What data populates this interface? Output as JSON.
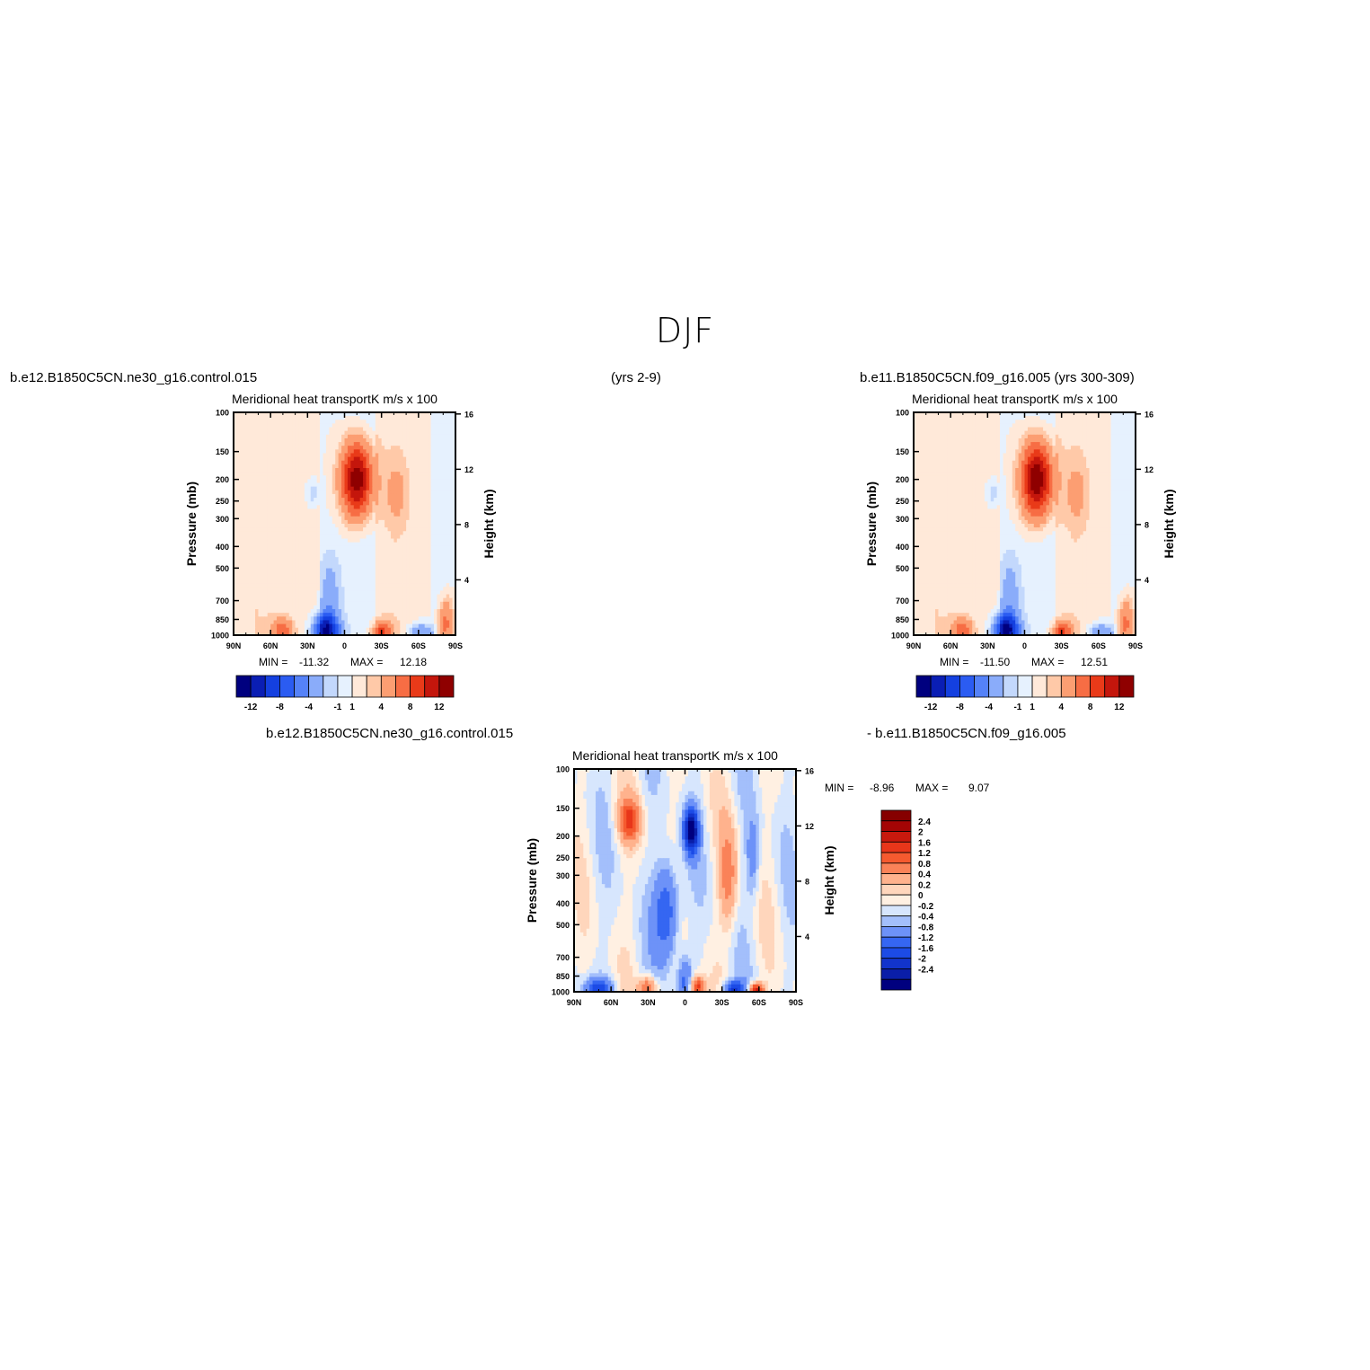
{
  "page_title": "DJF",
  "captions": {
    "left_case": "b.e12.B1850C5CN.ne30_g16.control.015",
    "years_left": "(yrs 2-9)",
    "right_case": "b.e11.B1850C5CN.f09_g16.005 (yrs 300-309)",
    "diff_case_a": "b.e12.B1850C5CN.ne30_g16.control.015",
    "diff_case_b": "- b.e11.B1850C5CN.f09_g16.005"
  },
  "chart_data": [
    {
      "id": "panel-1",
      "type": "heatmap",
      "title_left": "Meridional heat transport",
      "title_right": "K m/s x 100",
      "ylabel": "Pressure (mb)",
      "ylabel_right": "Height (km)",
      "x_ticks": [
        "90N",
        "60N",
        "30N",
        "0",
        "30S",
        "60S",
        "90S"
      ],
      "y_ticks": [
        "100",
        "150",
        "200",
        "250",
        "300",
        "400",
        "500",
        "700",
        "850",
        "1000"
      ],
      "y_right_ticks": [
        "16",
        "12",
        "8",
        "4"
      ],
      "min_label": "MIN =",
      "min_value": "-11.32",
      "max_label": "MAX =",
      "max_value": "12.18",
      "colorbar_ticks": [
        "-12",
        "-8",
        "-4",
        "-1",
        "1",
        "4",
        "8",
        "12"
      ],
      "features": [
        {
          "lat": -10,
          "p": 200,
          "value": 12.2
        },
        {
          "lat": 15,
          "p": 920,
          "value": -11.3
        },
        {
          "lat": -30,
          "p": 960,
          "value": 6
        },
        {
          "lat": 50,
          "p": 950,
          "value": 6
        },
        {
          "lat": -60,
          "p": 960,
          "value": -4
        },
        {
          "lat": 0,
          "p": 600,
          "value": -3
        },
        {
          "lat": 25,
          "p": 230,
          "value": -2
        },
        {
          "lat": -40,
          "p": 220,
          "value": 2
        }
      ]
    },
    {
      "id": "panel-2",
      "type": "heatmap",
      "title_left": "Meridional heat transport",
      "title_right": "K m/s x 100",
      "ylabel": "Pressure (mb)",
      "ylabel_right": "Height (km)",
      "x_ticks": [
        "90N",
        "60N",
        "30N",
        "0",
        "30S",
        "60S",
        "90S"
      ],
      "y_ticks": [
        "100",
        "150",
        "200",
        "250",
        "300",
        "400",
        "500",
        "700",
        "850",
        "1000"
      ],
      "y_right_ticks": [
        "16",
        "12",
        "8",
        "4"
      ],
      "min_label": "MIN =",
      "min_value": "-11.50",
      "max_label": "MAX =",
      "max_value": "12.51",
      "colorbar_ticks": [
        "-12",
        "-8",
        "-4",
        "-1",
        "1",
        "4",
        "8",
        "12"
      ],
      "features": [
        {
          "lat": -10,
          "p": 200,
          "value": 12.5
        },
        {
          "lat": 15,
          "p": 920,
          "value": -11.5
        },
        {
          "lat": -30,
          "p": 960,
          "value": 6
        },
        {
          "lat": 50,
          "p": 950,
          "value": 6
        },
        {
          "lat": -60,
          "p": 960,
          "value": -4
        },
        {
          "lat": 0,
          "p": 600,
          "value": -3
        },
        {
          "lat": 25,
          "p": 230,
          "value": -2.5
        },
        {
          "lat": -40,
          "p": 220,
          "value": 2
        }
      ]
    },
    {
      "id": "panel-diff",
      "type": "heatmap",
      "title_left": "Meridional heat transport",
      "title_right": "K m/s x 100",
      "ylabel": "Pressure (mb)",
      "ylabel_right": "Height (km)",
      "x_ticks": [
        "90N",
        "60N",
        "30N",
        "0",
        "30S",
        "60S",
        "90S"
      ],
      "y_ticks": [
        "100",
        "150",
        "200",
        "250",
        "300",
        "400",
        "500",
        "700",
        "850",
        "1000"
      ],
      "y_right_ticks": [
        "16",
        "12",
        "8",
        "4"
      ],
      "min_label": "MIN =",
      "min_value": "-8.96",
      "max_label": "MAX =",
      "max_value": "9.07",
      "colorbar_ticks": [
        "2.4",
        "2",
        "1.6",
        "1.2",
        "0.8",
        "0.4",
        "0.2",
        "0",
        "-0.2",
        "-0.4",
        "-0.8",
        "-1.2",
        "-1.6",
        "-2",
        "-2.4"
      ],
      "features": [
        {
          "lat": 45,
          "p": 180,
          "value": 1.4
        },
        {
          "lat": -5,
          "p": 200,
          "value": -2.6
        },
        {
          "lat": -35,
          "p": 280,
          "value": 1.0
        },
        {
          "lat": 15,
          "p": 420,
          "value": -1.2
        },
        {
          "lat": -55,
          "p": 970,
          "value": 1.8
        },
        {
          "lat": 30,
          "p": 960,
          "value": 1.2
        },
        {
          "lat": -10,
          "p": 960,
          "value": 1.6
        },
        {
          "lat": -40,
          "p": 970,
          "value": -1.4
        },
        {
          "lat": 70,
          "p": 970,
          "value": -1.2
        }
      ]
    }
  ],
  "colors": {
    "sequential_13": [
      "#00007f",
      "#0a1eb4",
      "#1440e0",
      "#2b5cf2",
      "#5582f8",
      "#8aacfa",
      "#c3d8fc",
      "#e6f1fe",
      "#ffe9d9",
      "#ffc9a8",
      "#fc9e72",
      "#f76d44",
      "#e93a19",
      "#c4160c",
      "#8f0000"
    ],
    "diff_17": [
      "#00007f",
      "#0a1ea8",
      "#1234cc",
      "#1c4be6",
      "#3566f2",
      "#6d92f8",
      "#a3bffb",
      "#d7e6fd",
      "#fff0e2",
      "#ffd6bc",
      "#ffb28d",
      "#fa8258",
      "#f55a2f",
      "#e8361a",
      "#c8190d",
      "#a40505",
      "#860000"
    ]
  }
}
